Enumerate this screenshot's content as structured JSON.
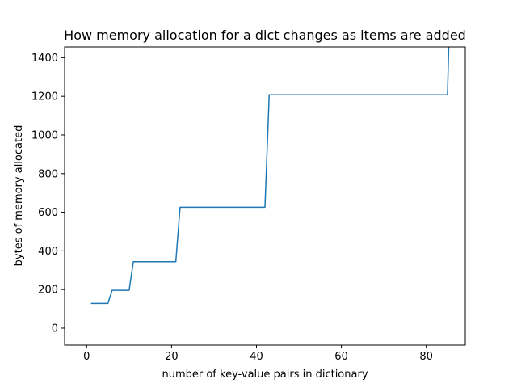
{
  "chart_data": {
    "type": "line",
    "title": "How memory allocation for a dict changes as items are added",
    "xlabel": "number of key-value pairs in dictionary",
    "ylabel": "bytes of memory allocated",
    "xlim": [
      -5.2,
      89.2
    ],
    "ylim": [
      -88,
      1456
    ],
    "xticks": [
      0,
      20,
      40,
      60,
      80
    ],
    "yticks": [
      0,
      200,
      400,
      600,
      800,
      1000,
      1200,
      1400
    ],
    "grid": false,
    "series": [
      {
        "color": "#1f77b4",
        "x": [
          1,
          5,
          6,
          10,
          11,
          21,
          22,
          42,
          43,
          85,
          85.3
        ],
        "y": [
          128,
          128,
          196,
          196,
          344,
          344,
          626,
          626,
          1208,
          1208,
          1456
        ]
      }
    ]
  }
}
